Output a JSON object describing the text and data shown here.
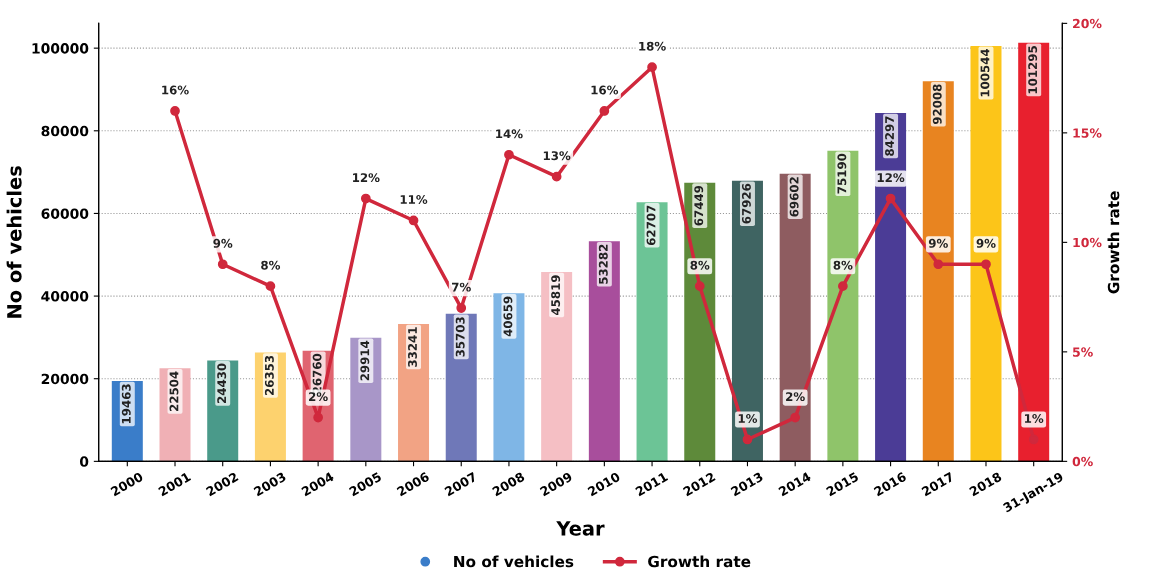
{
  "chart_data": {
    "type": "bar",
    "xlabel": "Year",
    "ylabel": "No of vehicles",
    "y2label": "Growth rate",
    "categories": [
      "2000",
      "2001",
      "2002",
      "2003",
      "2004",
      "2005",
      "2006",
      "2007",
      "2008",
      "2009",
      "2010",
      "2011",
      "2012",
      "2013",
      "2014",
      "2015",
      "2016",
      "2017",
      "2018",
      "31-Jan-19"
    ],
    "series": [
      {
        "name": "No of vehicles",
        "color": "#3a7dc9",
        "colors": [
          "#3a7dc9",
          "#f0b0b5",
          "#4a9a8a",
          "#fdd26e",
          "#e06470",
          "#a896c8",
          "#f2a384",
          "#6f78b8",
          "#7fb6e6",
          "#f5bfc4",
          "#a84e9c",
          "#6cc496",
          "#5e8a3a",
          "#3f6462",
          "#8e5c60",
          "#8fc46a",
          "#4b3c96",
          "#e88420",
          "#fcc519",
          "#e8202e"
        ],
        "values": [
          19463,
          22504,
          24430,
          26353,
          26760,
          29914,
          33241,
          35703,
          40659,
          45819,
          53282,
          62707,
          67449,
          67926,
          69602,
          75190,
          84297,
          92008,
          100544,
          101295
        ],
        "value_labels": [
          "19463",
          "22504",
          "24430",
          "26353",
          "26760",
          "29914",
          "33241",
          "35703",
          "40659",
          "45819",
          "53282",
          "62707",
          "67449",
          "67926",
          "69602",
          "75190",
          "84297",
          "92008",
          "100544",
          "101295"
        ]
      },
      {
        "name": "Growth rate",
        "type": "line",
        "axis": "y2",
        "color": "#d0283c",
        "marker": "circle",
        "values": [
          null,
          16,
          9,
          8,
          2,
          12,
          11,
          7,
          14,
          13,
          16,
          18,
          8,
          1,
          2,
          8,
          12,
          9,
          9,
          1
        ],
        "value_labels": [
          null,
          "16%",
          "9%",
          "8%",
          "2%",
          "12%",
          "11%",
          "7%",
          "14%",
          "13%",
          "16%",
          "18%",
          "8%",
          "1%",
          "2%",
          "8%",
          "12%",
          "9%",
          "9%",
          "1%"
        ]
      }
    ],
    "ylim": [
      0,
      106000
    ],
    "yticks": [
      0,
      20000,
      40000,
      60000,
      80000,
      100000
    ],
    "y2lim": [
      0,
      20
    ],
    "y2ticks": [
      {
        "value": 0,
        "label": "0%"
      },
      {
        "value": 5,
        "label": "5%"
      },
      {
        "value": 10,
        "label": "10%"
      },
      {
        "value": 15,
        "label": "15%"
      },
      {
        "value": 20,
        "label": "20%"
      }
    ],
    "grid": "y",
    "legend": "bottom"
  }
}
